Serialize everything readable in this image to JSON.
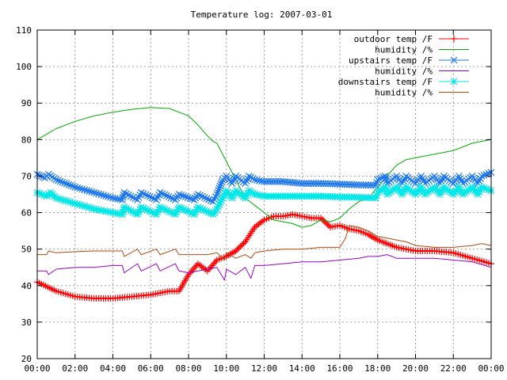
{
  "chart_data": {
    "type": "line",
    "title": "Temperature log: 2007-03-01",
    "xlabel": "",
    "ylabel": "",
    "xlim": [
      0,
      24
    ],
    "ylim": [
      20,
      110
    ],
    "x_ticks": [
      {
        "value": 0,
        "label": "00:00"
      },
      {
        "value": 2,
        "label": "02:00"
      },
      {
        "value": 4,
        "label": "04:00"
      },
      {
        "value": 6,
        "label": "06:00"
      },
      {
        "value": 8,
        "label": "08:00"
      },
      {
        "value": 10,
        "label": "10:00"
      },
      {
        "value": 12,
        "label": "12:00"
      },
      {
        "value": 14,
        "label": "14:00"
      },
      {
        "value": 16,
        "label": "16:00"
      },
      {
        "value": 18,
        "label": "18:00"
      },
      {
        "value": 20,
        "label": "20:00"
      },
      {
        "value": 22,
        "label": "22:00"
      },
      {
        "value": 24,
        "label": "00:00"
      }
    ],
    "y_ticks": [
      20,
      30,
      40,
      50,
      60,
      70,
      80,
      90,
      100,
      110
    ],
    "grid": true,
    "legend_position": "top-right",
    "series": [
      {
        "name": "outdoor temp /F",
        "color": "#ff0000",
        "marker": "plus",
        "x": [
          0,
          1,
          2,
          3,
          4,
          5,
          6,
          7,
          7.5,
          8,
          8.5,
          9,
          9.5,
          10,
          10.5,
          11,
          11.5,
          12,
          12.5,
          13,
          13.5,
          14,
          14.5,
          15,
          15.5,
          16,
          16.5,
          17,
          17.5,
          18,
          19,
          20,
          21,
          22,
          23,
          24
        ],
        "y": [
          41,
          38.5,
          37,
          36.5,
          36.5,
          37,
          37.5,
          38.5,
          38.5,
          43,
          46,
          44,
          47,
          48,
          49.5,
          52,
          56,
          58,
          59,
          59,
          59.5,
          59,
          58.5,
          58.5,
          56,
          56.5,
          55.5,
          55,
          54,
          52.5,
          50.5,
          49.5,
          49.5,
          49,
          47.5,
          46
        ]
      },
      {
        "name": "humidity /%",
        "color": "#00aa00",
        "marker": "none",
        "x": [
          0,
          0.5,
          1,
          2,
          3,
          4,
          5,
          6,
          7,
          7.5,
          8,
          8.5,
          9,
          9.3,
          9.5,
          10,
          10.5,
          11,
          11.5,
          12,
          12.5,
          13,
          13.5,
          14,
          14.5,
          15,
          15.5,
          16,
          16.5,
          17,
          17.5,
          18,
          18.5,
          19,
          19.5,
          20,
          21,
          22,
          23,
          24
        ],
        "y": [
          80,
          81.5,
          83,
          85,
          86.5,
          87.5,
          88.3,
          88.8,
          88.5,
          87.5,
          86.5,
          84,
          81,
          79.5,
          79,
          74,
          69,
          64,
          62,
          60,
          58,
          57.5,
          57,
          56,
          56.5,
          58,
          57.5,
          58.5,
          61,
          63,
          64,
          67,
          70,
          73,
          74.5,
          75,
          76,
          77,
          79,
          80
        ]
      },
      {
        "name": "upstairs temp /F",
        "color": "#1e77ee",
        "marker": "cross",
        "x": [
          0,
          0.4,
          0.6,
          1,
          2,
          3,
          4,
          4.5,
          4.6,
          5.3,
          5.5,
          6.3,
          6.5,
          7.3,
          7.5,
          8.3,
          8.5,
          9.3,
          9.5,
          9.8,
          10,
          10.3,
          10.5,
          11,
          11.2,
          11.5,
          12,
          12.5,
          13,
          14,
          15,
          16,
          17,
          17.9,
          18,
          18.4,
          18.5,
          19,
          19.3,
          19.5,
          20,
          20.3,
          20.5,
          21,
          21.3,
          21.5,
          22,
          22.3,
          22.5,
          23,
          23.3,
          23.5,
          24
        ],
        "y": [
          70.5,
          69.5,
          70.5,
          69,
          67,
          65.5,
          64,
          63.5,
          65.5,
          63.5,
          65.5,
          63.5,
          65.5,
          63.5,
          65,
          63.5,
          65,
          63,
          65,
          69,
          70,
          68,
          70,
          68,
          70,
          69,
          68.5,
          68.5,
          68.5,
          68,
          68,
          67.8,
          67.6,
          67.5,
          69,
          70,
          68,
          70,
          68,
          70,
          68,
          70,
          68,
          70,
          68,
          70,
          68,
          70,
          68,
          70,
          68,
          70,
          71
        ]
      },
      {
        "name": "humidity /%",
        "color": "#9900cc",
        "marker": "none",
        "x": [
          0,
          0.5,
          0.6,
          1,
          2,
          3,
          4,
          4.5,
          4.6,
          5.3,
          5.5,
          6.3,
          6.5,
          7.3,
          7.5,
          8,
          8.5,
          9,
          9.5,
          9.9,
          10,
          10.5,
          11,
          11.3,
          11.5,
          12,
          13,
          14,
          15,
          16,
          17,
          17.5,
          18,
          18.5,
          19,
          20,
          21,
          22,
          23,
          24
        ],
        "y": [
          44,
          44,
          43,
          44.5,
          45,
          45,
          45.5,
          45.5,
          43.5,
          46,
          44,
          46,
          44,
          46,
          44,
          43.5,
          44,
          44.5,
          45,
          41.5,
          44.5,
          43,
          45,
          42,
          45.5,
          45.5,
          46,
          46.5,
          46.5,
          47,
          47.5,
          48,
          48,
          48.5,
          47.5,
          47.5,
          47.5,
          47,
          46.5,
          45
        ]
      },
      {
        "name": "downstairs temp /F",
        "color": "#00e8e8",
        "marker": "star",
        "x": [
          0,
          0.5,
          0.7,
          1,
          2,
          3,
          4,
          4.5,
          4.6,
          5.3,
          5.5,
          6.3,
          6.5,
          7.3,
          7.5,
          8.3,
          8.5,
          9.3,
          9.5,
          9.8,
          10,
          10.3,
          10.5,
          11,
          11.2,
          11.5,
          12,
          12.5,
          13,
          14,
          15,
          16,
          17,
          17.9,
          18,
          18.4,
          18.5,
          19,
          19.3,
          19.5,
          20,
          20.3,
          20.5,
          21,
          21.3,
          21.5,
          22,
          22.3,
          22.5,
          23,
          23.3,
          23.5,
          24
        ],
        "y": [
          65.5,
          64.5,
          65.5,
          64,
          62.5,
          61,
          60,
          59.5,
          61.5,
          59.5,
          61.5,
          59.5,
          61.5,
          59.5,
          61.5,
          59.5,
          61.5,
          59.5,
          61,
          64,
          66,
          64,
          66,
          64,
          66,
          65,
          64.5,
          64.5,
          64.5,
          64.5,
          64.5,
          64.3,
          64.2,
          64,
          65.5,
          67,
          65,
          67,
          65,
          67,
          65,
          67,
          65,
          67,
          65,
          67,
          65,
          67,
          65,
          67,
          65,
          67,
          66
        ]
      },
      {
        "name": "humidity /%",
        "color": "#b04a10",
        "marker": "none",
        "x": [
          0,
          0.5,
          0.6,
          1,
          2,
          3,
          4,
          4.5,
          4.6,
          5.3,
          5.5,
          6.3,
          6.5,
          7.3,
          7.5,
          8,
          8.5,
          9,
          9.5,
          9.9,
          10,
          10.5,
          11,
          11.3,
          11.5,
          12,
          13,
          14,
          15,
          16,
          16.3,
          16.5,
          17,
          17.5,
          18,
          18.5,
          19,
          19.5,
          20,
          21,
          22,
          23,
          23.5,
          24
        ],
        "y": [
          48.5,
          48.5,
          49.5,
          49,
          49.3,
          49.5,
          49.5,
          49.5,
          48,
          50,
          48.5,
          50,
          48.5,
          50,
          48.5,
          48.5,
          48.5,
          48.5,
          49,
          47,
          49,
          47.5,
          48.5,
          47.5,
          49,
          49.5,
          50,
          50,
          50.5,
          50.5,
          53,
          56.5,
          56,
          55,
          53.5,
          53,
          52.5,
          52,
          51,
          50.5,
          50.5,
          51,
          51.5,
          51
        ]
      }
    ]
  }
}
